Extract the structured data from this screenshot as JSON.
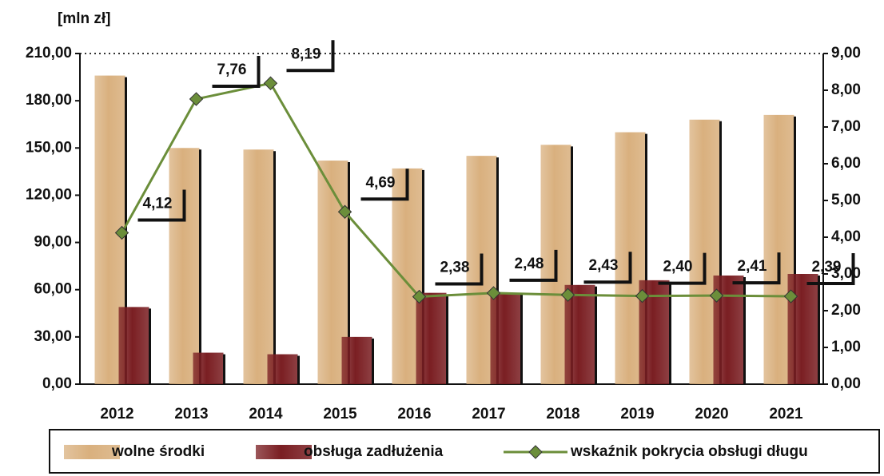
{
  "chart_data": {
    "type": "bar_line",
    "y_label": "[mln zł]",
    "categories": [
      "2012",
      "2013",
      "2014",
      "2015",
      "2016",
      "2017",
      "2018",
      "2019",
      "2020",
      "2021"
    ],
    "series": [
      {
        "name": "wolne środki",
        "type": "bar",
        "color": "#d9b07e",
        "values": [
          196,
          150,
          149,
          142,
          137,
          145,
          152,
          160,
          168,
          171
        ]
      },
      {
        "name": "obsługa zadłużenia",
        "type": "bar",
        "color": "#7a1e22",
        "values": [
          49,
          20,
          19,
          30,
          58,
          58,
          63,
          66,
          69,
          70
        ]
      },
      {
        "name": "wskaźnik pokrycia obsługi długu",
        "type": "line",
        "axis": "y2",
        "color": "#6b8e3a",
        "values": [
          4.12,
          7.76,
          8.19,
          4.69,
          2.38,
          2.48,
          2.43,
          2.4,
          2.41,
          2.39
        ],
        "value_labels": [
          "4,12",
          "7,76",
          "8,19",
          "4,69",
          "2,38",
          "2,48",
          "2,43",
          "2,40",
          "2,41",
          "2,39"
        ]
      }
    ],
    "ylim": [
      0,
      210
    ],
    "yticks": [
      {
        "value": 0,
        "label": "0,00"
      },
      {
        "value": 30,
        "label": "30,00"
      },
      {
        "value": 60,
        "label": "60,00"
      },
      {
        "value": 90,
        "label": "90,00"
      },
      {
        "value": 120,
        "label": "120,00"
      },
      {
        "value": 150,
        "label": "150,00"
      },
      {
        "value": 180,
        "label": "180,00"
      },
      {
        "value": 210,
        "label": "210,00"
      }
    ],
    "y2lim": [
      0,
      9
    ],
    "y2ticks": [
      {
        "value": 0,
        "label": "0,00"
      },
      {
        "value": 1,
        "label": "1,00"
      },
      {
        "value": 2,
        "label": "2,00"
      },
      {
        "value": 3,
        "label": "3,00"
      },
      {
        "value": 4,
        "label": "4,00"
      },
      {
        "value": 5,
        "label": "5,00"
      },
      {
        "value": 6,
        "label": "6,00"
      },
      {
        "value": 7,
        "label": "7,00"
      },
      {
        "value": 8,
        "label": "8,00"
      },
      {
        "value": 9,
        "label": "9,00"
      }
    ]
  }
}
